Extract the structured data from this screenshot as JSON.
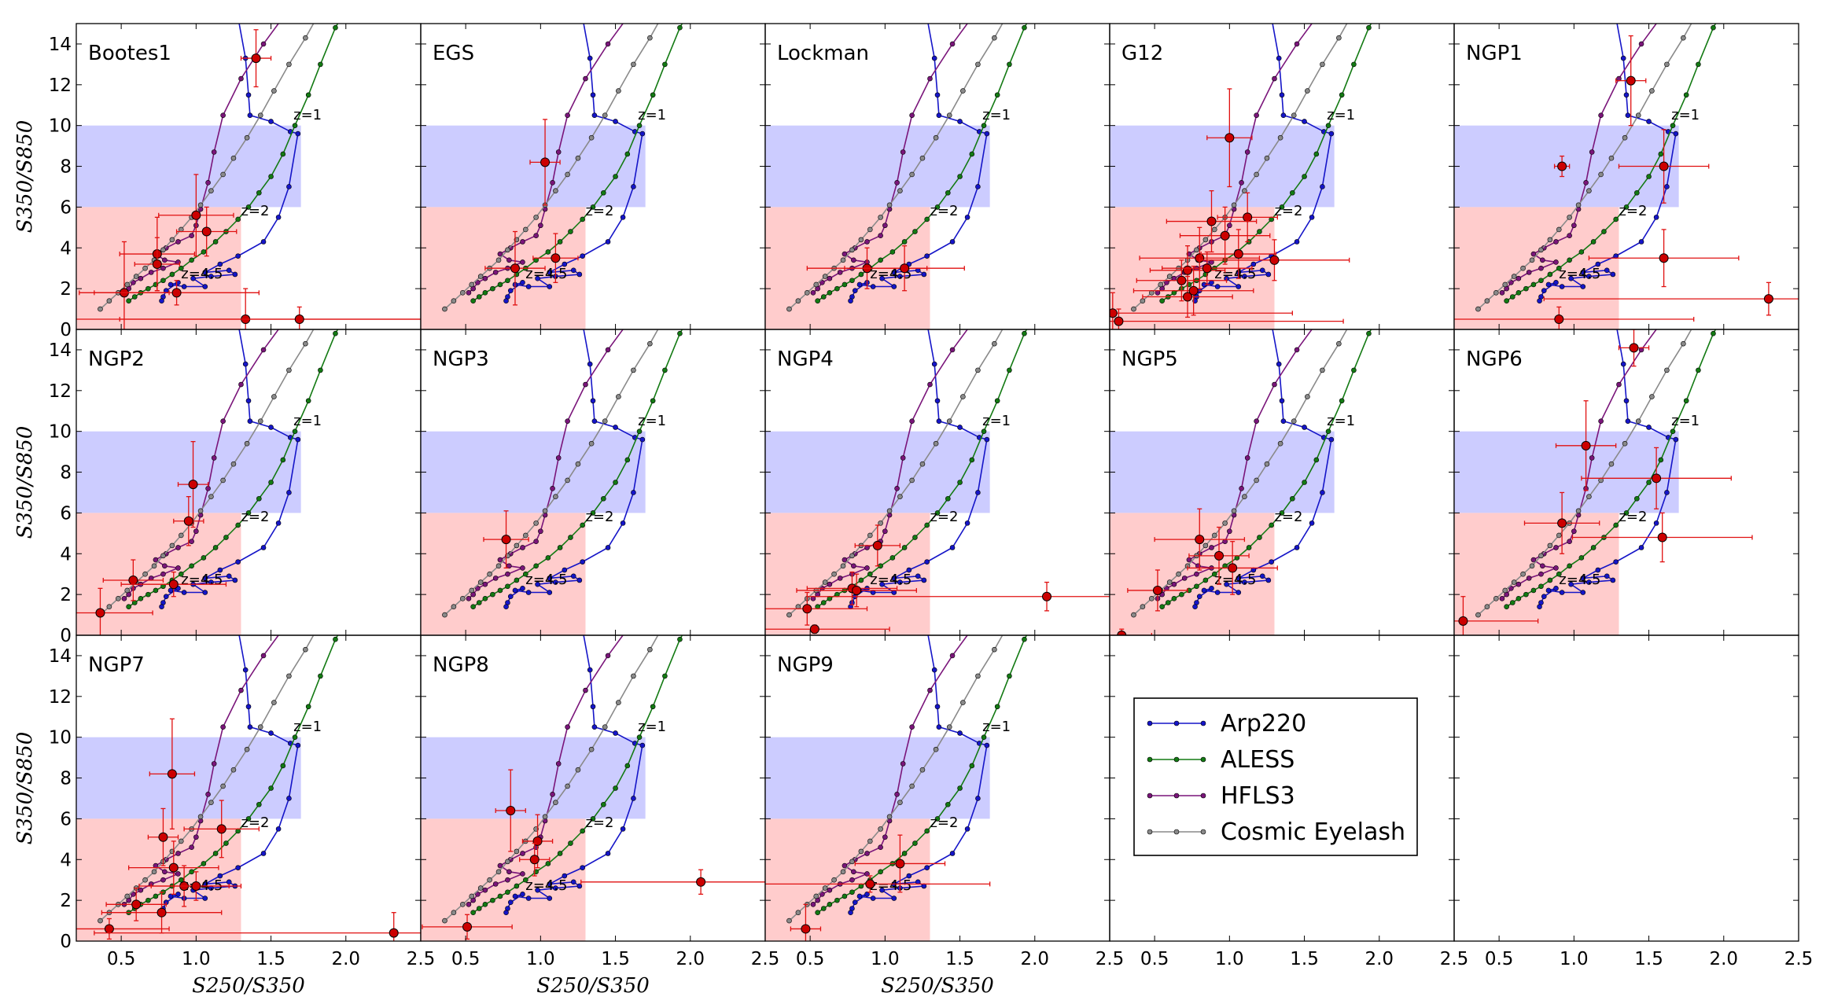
{
  "figure": {
    "xlabel": "S250/S350",
    "ylabel": "S350/S850",
    "xlim": [
      0.2,
      2.5
    ],
    "ylim": [
      0,
      15
    ],
    "xticks": [
      0.5,
      1.0,
      1.5,
      2.0,
      2.5
    ],
    "yticks": [
      0,
      2,
      4,
      6,
      8,
      10,
      12,
      14
    ],
    "z_labels": [
      {
        "text": "z=1",
        "x": 1.65,
        "y": 10.3
      },
      {
        "text": "z=2",
        "x": 1.3,
        "y": 5.6
      },
      {
        "text": "z=4.5",
        "x": 0.9,
        "y": 2.5
      }
    ],
    "selection_regions": [
      {
        "name": "blue",
        "color": "#ccccff",
        "x": [
          0.2,
          1.7
        ],
        "y": [
          6,
          10
        ]
      },
      {
        "name": "red",
        "color": "#ffcccc",
        "x": [
          0.2,
          1.3
        ],
        "y": [
          0,
          6
        ]
      }
    ]
  },
  "chart_data": {
    "type": "scatter",
    "templates": [
      {
        "name": "Arp220",
        "color": "#1515c8",
        "points": [
          [
            1.25,
            16.5
          ],
          [
            1.33,
            13.3
          ],
          [
            1.35,
            11.5
          ],
          [
            1.36,
            10.5
          ],
          [
            1.5,
            10.2
          ],
          [
            1.63,
            9.7
          ],
          [
            1.68,
            9.6
          ],
          [
            1.62,
            7.0
          ],
          [
            1.55,
            5.5
          ],
          [
            1.45,
            4.3
          ],
          [
            1.28,
            3.6
          ],
          [
            1.16,
            3.2
          ],
          [
            1.06,
            2.8
          ],
          [
            1.22,
            2.9
          ],
          [
            1.26,
            2.7
          ],
          [
            1.1,
            2.6
          ],
          [
            0.98,
            2.5
          ],
          [
            1.06,
            2.1
          ],
          [
            0.92,
            2.1
          ],
          [
            0.83,
            2.2
          ],
          [
            0.88,
            2.3
          ],
          [
            0.8,
            1.9
          ],
          [
            0.78,
            1.6
          ],
          [
            0.77,
            1.4
          ]
        ]
      },
      {
        "name": "ALESS",
        "color": "#137a13",
        "points": [
          [
            2.02,
            16.0
          ],
          [
            1.93,
            14.8
          ],
          [
            1.83,
            13.0
          ],
          [
            1.75,
            11.5
          ],
          [
            1.66,
            10.0
          ],
          [
            1.58,
            8.6
          ],
          [
            1.5,
            7.5
          ],
          [
            1.42,
            6.7
          ],
          [
            1.35,
            6.0
          ],
          [
            1.28,
            5.4
          ],
          [
            1.2,
            4.8
          ],
          [
            1.13,
            4.3
          ],
          [
            1.05,
            3.8
          ],
          [
            0.97,
            3.4
          ],
          [
            0.9,
            3.0
          ],
          [
            0.84,
            2.7
          ],
          [
            0.78,
            2.4
          ],
          [
            0.73,
            2.2
          ],
          [
            0.68,
            2.0
          ],
          [
            0.63,
            1.8
          ],
          [
            0.59,
            1.6
          ],
          [
            0.55,
            1.4
          ]
        ]
      },
      {
        "name": "HFLS3",
        "color": "#7a157a",
        "points": [
          [
            1.6,
            15.5
          ],
          [
            1.45,
            14.0
          ],
          [
            1.3,
            12.3
          ],
          [
            1.18,
            10.5
          ],
          [
            1.12,
            8.7
          ],
          [
            1.08,
            7.2
          ],
          [
            1.03,
            5.9
          ],
          [
            1.0,
            5.1
          ],
          [
            0.97,
            4.6
          ],
          [
            0.88,
            4.3
          ],
          [
            0.8,
            4.0
          ],
          [
            0.73,
            3.7
          ],
          [
            0.79,
            3.4
          ],
          [
            0.88,
            3.3
          ],
          [
            0.78,
            3.0
          ],
          [
            0.7,
            2.8
          ],
          [
            0.63,
            2.5
          ],
          [
            0.58,
            2.3
          ],
          [
            0.55,
            2.0
          ],
          [
            0.52,
            1.8
          ]
        ]
      },
      {
        "name": "Cosmic Eyelash",
        "color": "#8a8a8a",
        "points": [
          [
            1.86,
            16.0
          ],
          [
            1.73,
            14.3
          ],
          [
            1.62,
            13.0
          ],
          [
            1.52,
            11.7
          ],
          [
            1.43,
            10.5
          ],
          [
            1.34,
            9.4
          ],
          [
            1.25,
            8.4
          ],
          [
            1.18,
            7.6
          ],
          [
            1.1,
            6.8
          ],
          [
            1.03,
            6.1
          ],
          [
            0.97,
            5.5
          ],
          [
            0.9,
            4.9
          ],
          [
            0.84,
            4.4
          ],
          [
            0.78,
            3.9
          ],
          [
            0.72,
            3.4
          ],
          [
            0.66,
            3.0
          ],
          [
            0.6,
            2.6
          ],
          [
            0.54,
            2.2
          ],
          [
            0.48,
            1.8
          ],
          [
            0.42,
            1.4
          ],
          [
            0.36,
            1.0
          ]
        ]
      }
    ],
    "panels": [
      {
        "name": "Bootes1",
        "points": [
          {
            "x": 1.4,
            "y": 13.3,
            "xerr": 0.1,
            "yerr": 1.4
          },
          {
            "x": 1.0,
            "y": 5.6,
            "xerr": 0.25,
            "yerr": 2.0
          },
          {
            "x": 1.07,
            "y": 4.8,
            "xerr": 0.2,
            "yerr": 1.2
          },
          {
            "x": 0.74,
            "y": 3.7,
            "xerr": 0.25,
            "yerr": 1.8
          },
          {
            "x": 0.74,
            "y": 3.2,
            "xerr": 0.15,
            "yerr": 1.3
          },
          {
            "x": 0.52,
            "y": 1.8,
            "xerr": 0.3,
            "yerr": 2.5
          },
          {
            "x": 0.87,
            "y": 1.8,
            "xerr": 0.55,
            "yerr": 0.6
          },
          {
            "x": 1.33,
            "y": 0.5,
            "xerr": 1.3,
            "yerr": 1.5
          },
          {
            "x": 1.69,
            "y": 0.5,
            "xerr": 1.2,
            "yerr": 0.6
          }
        ]
      },
      {
        "name": "EGS",
        "points": [
          {
            "x": 1.03,
            "y": 8.2,
            "xerr": 0.1,
            "yerr": 2.1
          },
          {
            "x": 1.1,
            "y": 3.5,
            "xerr": 0.15,
            "yerr": 1.2
          },
          {
            "x": 0.83,
            "y": 3.0,
            "xerr": 0.2,
            "yerr": 1.8
          }
        ]
      },
      {
        "name": "Lockman",
        "points": [
          {
            "x": 0.88,
            "y": 3.0,
            "xerr": 0.4,
            "yerr": 1.0
          },
          {
            "x": 1.13,
            "y": 3.0,
            "xerr": 0.4,
            "yerr": 1.1
          }
        ]
      },
      {
        "name": "G12",
        "points": [
          {
            "x": 1.0,
            "y": 9.4,
            "xerr": 0.15,
            "yerr": 2.4
          },
          {
            "x": 1.12,
            "y": 5.5,
            "xerr": 0.2,
            "yerr": 1.2
          },
          {
            "x": 0.88,
            "y": 5.3,
            "xerr": 0.3,
            "yerr": 1.5
          },
          {
            "x": 0.97,
            "y": 4.6,
            "xerr": 0.3,
            "yerr": 1.4
          },
          {
            "x": 0.8,
            "y": 3.5,
            "xerr": 0.4,
            "yerr": 1.5
          },
          {
            "x": 1.06,
            "y": 3.7,
            "xerr": 0.25,
            "yerr": 1.2
          },
          {
            "x": 0.72,
            "y": 2.9,
            "xerr": 0.25,
            "yerr": 1.2
          },
          {
            "x": 0.68,
            "y": 2.4,
            "xerr": 0.3,
            "yerr": 1.0
          },
          {
            "x": 0.85,
            "y": 3.0,
            "xerr": 0.3,
            "yerr": 0.8
          },
          {
            "x": 1.3,
            "y": 3.4,
            "xerr": 0.5,
            "yerr": 1.0
          },
          {
            "x": 0.72,
            "y": 1.6,
            "xerr": 0.3,
            "yerr": 1.0
          },
          {
            "x": 0.76,
            "y": 1.9,
            "xerr": 0.4,
            "yerr": 1.2
          },
          {
            "x": 0.22,
            "y": 0.8,
            "xerr": 1.2,
            "yerr": 1.0
          },
          {
            "x": 0.26,
            "y": 0.4,
            "xerr": 1.5,
            "yerr": 0.6
          }
        ]
      },
      {
        "name": "NGP1",
        "points": [
          {
            "x": 1.38,
            "y": 12.2,
            "xerr": 0.1,
            "yerr": 2.2
          },
          {
            "x": 0.92,
            "y": 8.0,
            "xerr": 0.05,
            "yerr": 0.5
          },
          {
            "x": 1.6,
            "y": 8.0,
            "xerr": 0.3,
            "yerr": 1.8
          },
          {
            "x": 1.6,
            "y": 3.5,
            "xerr": 0.5,
            "yerr": 1.4
          },
          {
            "x": 0.9,
            "y": 0.5,
            "xerr": 0.9,
            "yerr": 0.6
          },
          {
            "x": 2.3,
            "y": 1.5,
            "xerr": 1.5,
            "yerr": 0.8
          }
        ]
      },
      {
        "name": "NGP2",
        "points": [
          {
            "x": 0.98,
            "y": 7.4,
            "xerr": 0.1,
            "yerr": 2.1
          },
          {
            "x": 0.95,
            "y": 5.6,
            "xerr": 0.1,
            "yerr": 1.2
          },
          {
            "x": 0.58,
            "y": 2.7,
            "xerr": 0.2,
            "yerr": 1.0
          },
          {
            "x": 0.85,
            "y": 2.5,
            "xerr": 0.35,
            "yerr": 0.6
          },
          {
            "x": 0.36,
            "y": 1.1,
            "xerr": 0.35,
            "yerr": 1.2
          }
        ]
      },
      {
        "name": "NGP3",
        "points": [
          {
            "x": 0.77,
            "y": 4.7,
            "xerr": 0.15,
            "yerr": 1.4
          }
        ]
      },
      {
        "name": "NGP4",
        "points": [
          {
            "x": 0.95,
            "y": 4.4,
            "xerr": 0.15,
            "yerr": 1.0
          },
          {
            "x": 0.78,
            "y": 2.3,
            "xerr": 0.3,
            "yerr": 0.8
          },
          {
            "x": 0.81,
            "y": 2.2,
            "xerr": 0.4,
            "yerr": 0.8
          },
          {
            "x": 0.48,
            "y": 1.3,
            "xerr": 0.4,
            "yerr": 0.8
          },
          {
            "x": 0.53,
            "y": 0.3,
            "xerr": 0.5,
            "yerr": 0.2
          },
          {
            "x": 2.08,
            "y": 1.9,
            "xerr": 1.6,
            "yerr": 0.7
          }
        ]
      },
      {
        "name": "NGP5",
        "points": [
          {
            "x": 0.8,
            "y": 4.7,
            "xerr": 0.3,
            "yerr": 1.5
          },
          {
            "x": 0.93,
            "y": 3.9,
            "xerr": 0.2,
            "yerr": 1.4
          },
          {
            "x": 1.02,
            "y": 3.3,
            "xerr": 0.3,
            "yerr": 1.3
          },
          {
            "x": 0.52,
            "y": 2.2,
            "xerr": 0.2,
            "yerr": 1.0
          },
          {
            "x": 0.28,
            "y": 0.0,
            "xerr": 0.2,
            "yerr": 0.3
          }
        ]
      },
      {
        "name": "NGP6",
        "points": [
          {
            "x": 1.4,
            "y": 14.1,
            "xerr": 0.1,
            "yerr": 0.9
          },
          {
            "x": 1.08,
            "y": 9.3,
            "xerr": 0.2,
            "yerr": 2.2
          },
          {
            "x": 1.55,
            "y": 7.7,
            "xerr": 0.5,
            "yerr": 1.5
          },
          {
            "x": 0.92,
            "y": 5.5,
            "xerr": 0.25,
            "yerr": 1.5
          },
          {
            "x": 1.59,
            "y": 4.8,
            "xerr": 0.6,
            "yerr": 1.2
          },
          {
            "x": 0.26,
            "y": 0.7,
            "xerr": 0.5,
            "yerr": 1.2
          }
        ]
      },
      {
        "name": "NGP7",
        "points": [
          {
            "x": 0.84,
            "y": 8.2,
            "xerr": 0.15,
            "yerr": 2.7
          },
          {
            "x": 1.17,
            "y": 5.5,
            "xerr": 0.25,
            "yerr": 1.4
          },
          {
            "x": 0.78,
            "y": 5.1,
            "xerr": 0.1,
            "yerr": 1.4
          },
          {
            "x": 0.85,
            "y": 3.6,
            "xerr": 0.3,
            "yerr": 1.3
          },
          {
            "x": 0.92,
            "y": 2.7,
            "xerr": 0.3,
            "yerr": 1.0
          },
          {
            "x": 1.0,
            "y": 2.7,
            "xerr": 0.3,
            "yerr": 0.7
          },
          {
            "x": 0.6,
            "y": 1.8,
            "xerr": 0.2,
            "yerr": 0.8
          },
          {
            "x": 0.77,
            "y": 1.4,
            "xerr": 0.4,
            "yerr": 1.0
          },
          {
            "x": 0.42,
            "y": 0.6,
            "xerr": 0.4,
            "yerr": 0.5
          },
          {
            "x": 2.32,
            "y": 0.4,
            "xerr": 2.0,
            "yerr": 1.0
          }
        ]
      },
      {
        "name": "NGP8",
        "points": [
          {
            "x": 0.8,
            "y": 6.4,
            "xerr": 0.1,
            "yerr": 2.0
          },
          {
            "x": 0.98,
            "y": 4.9,
            "xerr": 0.1,
            "yerr": 1.3
          },
          {
            "x": 0.96,
            "y": 4.0,
            "xerr": 0.1,
            "yerr": 0.8
          },
          {
            "x": 0.51,
            "y": 0.7,
            "xerr": 0.3,
            "yerr": 0.6
          },
          {
            "x": 2.07,
            "y": 2.9,
            "xerr": 0.8,
            "yerr": 0.6
          }
        ]
      },
      {
        "name": "NGP9",
        "points": [
          {
            "x": 1.1,
            "y": 3.8,
            "xerr": 0.3,
            "yerr": 1.4
          },
          {
            "x": 0.47,
            "y": 0.6,
            "xerr": 0.1,
            "yerr": 1.2
          },
          {
            "x": 0.9,
            "y": 2.8,
            "xerr": 0.8,
            "yerr": 0.4
          }
        ]
      }
    ]
  }
}
